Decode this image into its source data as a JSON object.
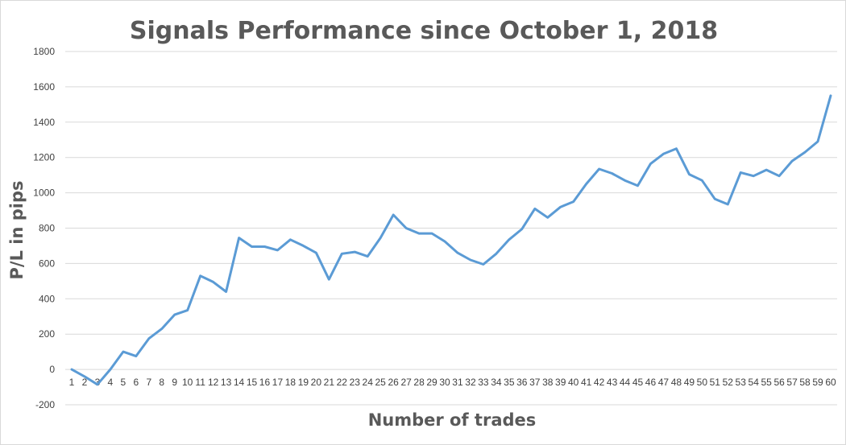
{
  "chart_data": {
    "type": "line",
    "title": "Signals Performance since October 1, 2018",
    "xlabel": "Number of trades",
    "ylabel": "P/L in pips",
    "ylim": [
      -200,
      1800
    ],
    "yticks": [
      -200,
      0,
      200,
      400,
      600,
      800,
      1000,
      1200,
      1400,
      1600,
      1800
    ],
    "grid": true,
    "line_color": "#5B9BD5",
    "x": [
      1,
      2,
      3,
      4,
      5,
      6,
      7,
      8,
      9,
      10,
      11,
      12,
      13,
      14,
      15,
      16,
      17,
      18,
      19,
      20,
      21,
      22,
      23,
      24,
      25,
      26,
      27,
      28,
      29,
      30,
      31,
      32,
      33,
      34,
      35,
      36,
      37,
      38,
      39,
      40,
      41,
      42,
      43,
      44,
      45,
      46,
      47,
      48,
      49,
      50,
      51,
      52,
      53,
      54,
      55,
      56,
      57,
      58,
      59,
      60
    ],
    "values": [
      0,
      -40,
      -85,
      0,
      100,
      75,
      175,
      230,
      310,
      335,
      530,
      495,
      440,
      745,
      695,
      695,
      675,
      735,
      700,
      660,
      510,
      655,
      665,
      640,
      745,
      875,
      800,
      770,
      770,
      725,
      660,
      620,
      595,
      655,
      735,
      795,
      910,
      860,
      920,
      950,
      1050,
      1135,
      1110,
      1070,
      1040,
      1165,
      1220,
      1250,
      1105,
      1070,
      965,
      935,
      1115,
      1095,
      1130,
      1095,
      1180,
      1230,
      1290,
      1550
    ]
  }
}
